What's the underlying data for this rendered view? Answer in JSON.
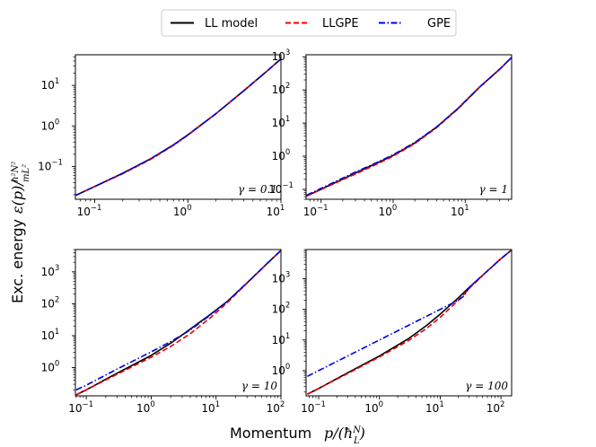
{
  "chart_data": {
    "type": "line",
    "figure_layout": "2x2 grid, log-log axes",
    "xlabel": "Momentum",
    "xlabel_math": "p/(ħN/L)",
    "ylabel": "Exc. energy",
    "ylabel_math": "ε(p)/(ħ²N²/mL²)",
    "legend": {
      "placement": "top-center",
      "entries": [
        {
          "name": "LL model",
          "color": "#000000",
          "style": "solid"
        },
        {
          "name": "LLGPE",
          "color": "#e8000b",
          "style": "dashed"
        },
        {
          "name": "GPE",
          "color": "#0000e6",
          "style": "dashdot"
        }
      ]
    },
    "panels": [
      {
        "id": "gamma-0.1",
        "gamma_label": "γ = 0.1",
        "xlim": [
          0.062,
          10
        ],
        "ylim": [
          0.0155,
          57
        ],
        "xticks": [
          {
            "v": 0.1,
            "label": "10",
            "exp": "−1"
          },
          {
            "v": 1,
            "label": "10",
            "exp": "0"
          },
          {
            "v": 10,
            "label": "10",
            "exp": "1"
          }
        ],
        "yticks": [
          {
            "v": 0.1,
            "label": "10",
            "exp": "−1"
          },
          {
            "v": 1,
            "label": "10",
            "exp": "0"
          },
          {
            "v": 10,
            "label": "10",
            "exp": "1"
          }
        ],
        "series": [
          {
            "name": "LL model",
            "x": [
              0.063,
              0.1,
              0.2,
              0.4,
              0.7,
              1,
              2,
              4,
              7,
              10
            ],
            "y": [
              0.0195,
              0.032,
              0.068,
              0.155,
              0.34,
              0.6,
              2.0,
              7.4,
              22,
              45
            ]
          },
          {
            "name": "LLGPE",
            "x": [
              0.063,
              0.1,
              0.2,
              0.4,
              0.7,
              1,
              2,
              4,
              7,
              10
            ],
            "y": [
              0.0195,
              0.032,
              0.066,
              0.15,
              0.33,
              0.59,
              2.0,
              7.4,
              22,
              45
            ]
          },
          {
            "name": "GPE",
            "x": [
              0.063,
              0.1,
              0.2,
              0.4,
              0.7,
              1,
              2,
              4,
              7,
              10
            ],
            "y": [
              0.0195,
              0.032,
              0.068,
              0.155,
              0.34,
              0.6,
              2.0,
              7.4,
              22,
              45
            ]
          }
        ]
      },
      {
        "id": "gamma-1",
        "gamma_label": "γ = 1",
        "xlim": [
          0.062,
          44
        ],
        "ylim": [
          0.05,
          1150
        ],
        "xticks": [
          {
            "v": 0.1,
            "label": "10",
            "exp": "−1"
          },
          {
            "v": 1,
            "label": "10",
            "exp": "0"
          },
          {
            "v": 10,
            "label": "10",
            "exp": "1"
          }
        ],
        "yticks": [
          {
            "v": 0.1,
            "label": "10",
            "exp": "−1"
          },
          {
            "v": 1,
            "label": "10",
            "exp": "0"
          },
          {
            "v": 10,
            "label": "10",
            "exp": "1"
          },
          {
            "v": 100,
            "label": "10",
            "exp": "2"
          },
          {
            "v": 1000,
            "label": "10",
            "exp": "3"
          }
        ],
        "series": [
          {
            "name": "LL model",
            "x": [
              0.063,
              0.1,
              0.3,
              0.6,
              1,
              2,
              4,
              8,
              16,
              30,
              44
            ],
            "y": [
              0.063,
              0.1,
              0.31,
              0.62,
              1.05,
              2.5,
              7.5,
              28,
              125,
              420,
              960
            ]
          },
          {
            "name": "LLGPE",
            "x": [
              0.063,
              0.1,
              0.3,
              0.6,
              1,
              2,
              4,
              8,
              16,
              30,
              44
            ],
            "y": [
              0.062,
              0.098,
              0.29,
              0.58,
              1.0,
              2.4,
              7.2,
              27,
              122,
              415,
              955
            ]
          },
          {
            "name": "GPE",
            "x": [
              0.063,
              0.1,
              0.3,
              0.6,
              1,
              2,
              4,
              8,
              16,
              30,
              44
            ],
            "y": [
              0.066,
              0.107,
              0.33,
              0.65,
              1.1,
              2.6,
              7.6,
              28,
              125,
              420,
              960
            ]
          }
        ]
      },
      {
        "id": "gamma-10",
        "gamma_label": "γ = 10",
        "xlim": [
          0.068,
          100
        ],
        "ylim": [
          0.13,
          5000
        ],
        "xticks": [
          {
            "v": 0.1,
            "label": "10",
            "exp": "−1"
          },
          {
            "v": 1,
            "label": "10",
            "exp": "0"
          },
          {
            "v": 10,
            "label": "10",
            "exp": "1"
          },
          {
            "v": 100,
            "label": "10",
            "exp": "2"
          }
        ],
        "yticks": [
          {
            "v": 1,
            "label": "10",
            "exp": "0"
          },
          {
            "v": 10,
            "label": "10",
            "exp": "1"
          },
          {
            "v": 100,
            "label": "10",
            "exp": "2"
          },
          {
            "v": 1000,
            "label": "10",
            "exp": "3"
          }
        ],
        "series": [
          {
            "name": "LL model",
            "x": [
              0.07,
              0.1,
              0.3,
              1,
              2,
              4,
              8,
              15,
              30,
              60,
              100
            ],
            "y": [
              0.14,
              0.2,
              0.67,
              2.4,
              5.8,
              16,
              45,
              120,
              450,
              1750,
              4700
            ]
          },
          {
            "name": "LLGPE",
            "x": [
              0.07,
              0.1,
              0.3,
              1,
              2,
              4,
              8,
              15,
              30,
              60,
              100
            ],
            "y": [
              0.14,
              0.2,
              0.62,
              2.1,
              4.6,
              11.5,
              35,
              110,
              440,
              1750,
              4700
            ]
          },
          {
            "name": "GPE",
            "x": [
              0.07,
              0.1,
              0.3,
              1,
              2,
              4,
              8,
              15,
              30,
              60,
              100
            ],
            "y": [
              0.2,
              0.28,
              0.9,
              3.1,
              6.5,
              15,
              43,
              120,
              450,
              1750,
              4700
            ]
          }
        ]
      },
      {
        "id": "gamma-100",
        "gamma_label": "γ = 100",
        "xlim": [
          0.062,
          150
        ],
        "ylim": [
          0.15,
          9000
        ],
        "xticks": [
          {
            "v": 0.1,
            "label": "10",
            "exp": "−1"
          },
          {
            "v": 1,
            "label": "10",
            "exp": "0"
          },
          {
            "v": 10,
            "label": "10",
            "exp": "1"
          },
          {
            "v": 100,
            "label": "10",
            "exp": "2"
          }
        ],
        "yticks": [
          {
            "v": 1,
            "label": "10",
            "exp": "0"
          },
          {
            "v": 10,
            "label": "10",
            "exp": "1"
          },
          {
            "v": 100,
            "label": "10",
            "exp": "2"
          },
          {
            "v": 1000,
            "label": "10",
            "exp": "3"
          }
        ],
        "series": [
          {
            "name": "LL model",
            "x": [
              0.065,
              0.1,
              0.3,
              1,
              3,
              6,
              10,
              20,
              30,
              60,
              100,
              150
            ],
            "y": [
              0.17,
              0.26,
              0.85,
              3.0,
              11,
              30,
              70,
              240,
              520,
              1800,
              4500,
              8700
            ]
          },
          {
            "name": "LLGPE",
            "x": [
              0.065,
              0.1,
              0.3,
              1,
              3,
              6,
              10,
              20,
              30,
              60,
              100,
              150
            ],
            "y": [
              0.17,
              0.26,
              0.8,
              2.8,
              9.5,
              24,
              55,
              200,
              480,
              1800,
              4500,
              8700
            ]
          },
          {
            "name": "GPE",
            "x": [
              0.065,
              0.1,
              0.3,
              1,
              3,
              6,
              10,
              20,
              25,
              30,
              60,
              100,
              150
            ],
            "y": [
              0.65,
              1.0,
              3.0,
              10,
              30,
              60,
              100,
              200,
              280,
              520,
              1800,
              4500,
              8700
            ]
          }
        ]
      }
    ]
  }
}
